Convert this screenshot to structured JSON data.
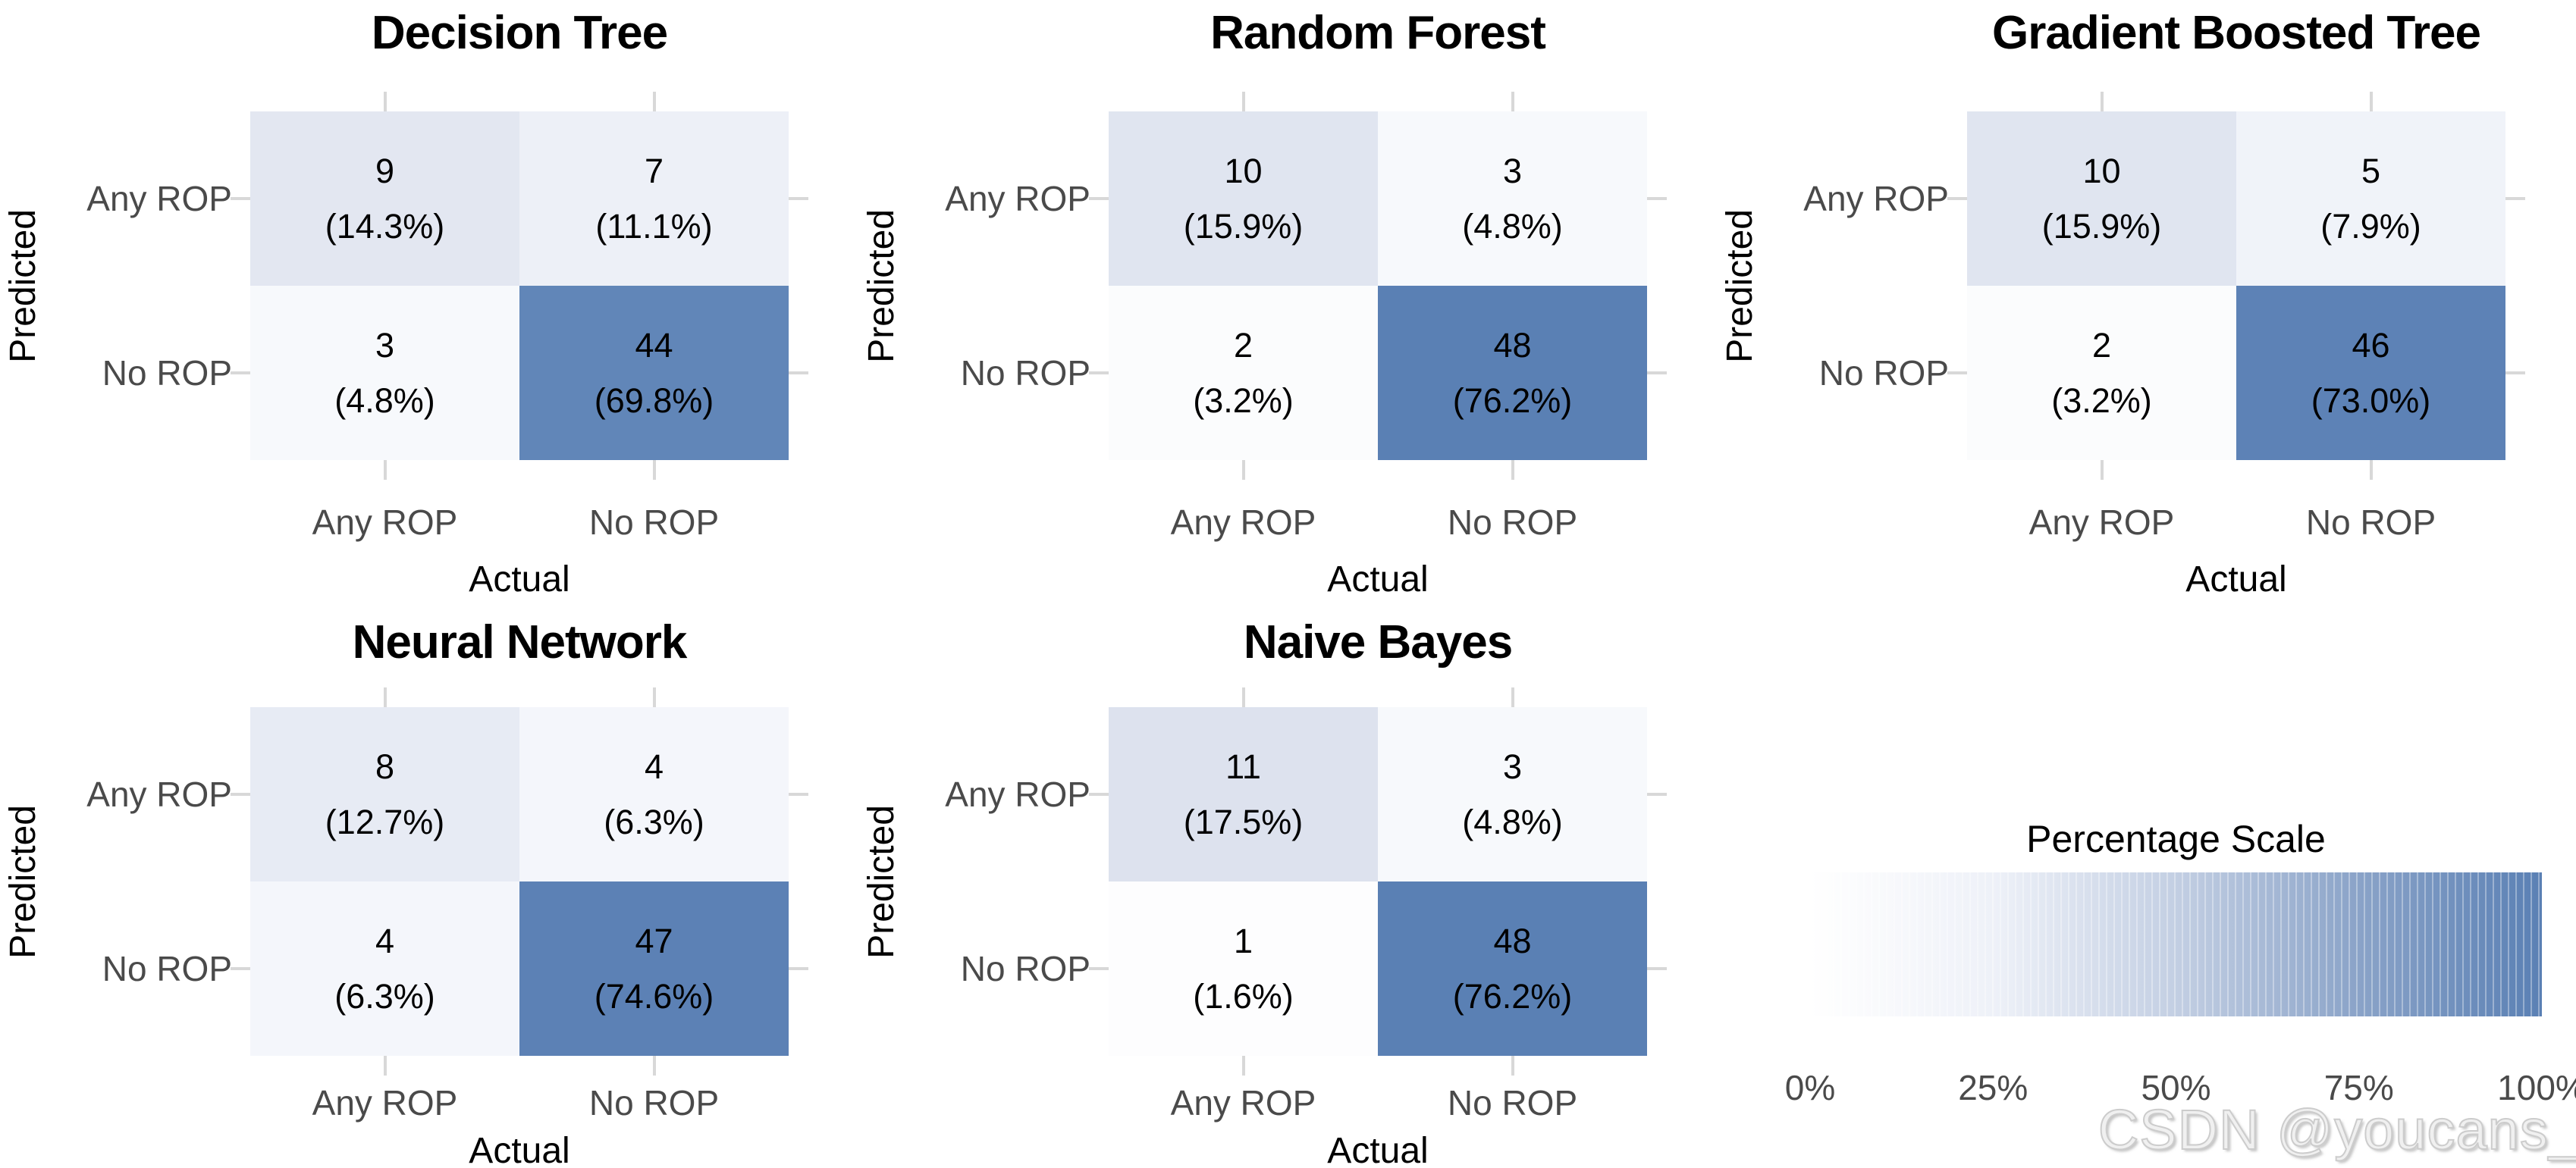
{
  "chart_data": [
    {
      "type": "heatmap",
      "title": "Decision Tree",
      "xlabel": "Actual",
      "ylabel": "Predicted",
      "x_categories": [
        "Any ROP",
        "No ROP"
      ],
      "y_categories": [
        "Any ROP",
        "No ROP"
      ],
      "counts": [
        [
          9,
          7
        ],
        [
          3,
          44
        ]
      ],
      "percentages": [
        [
          14.3,
          11.1
        ],
        [
          4.8,
          69.8
        ]
      ]
    },
    {
      "type": "heatmap",
      "title": "Random Forest",
      "xlabel": "Actual",
      "ylabel": "Predicted",
      "x_categories": [
        "Any ROP",
        "No ROP"
      ],
      "y_categories": [
        "Any ROP",
        "No ROP"
      ],
      "counts": [
        [
          10,
          3
        ],
        [
          2,
          48
        ]
      ],
      "percentages": [
        [
          15.9,
          4.8
        ],
        [
          3.2,
          76.2
        ]
      ]
    },
    {
      "type": "heatmap",
      "title": "Gradient Boosted Tree",
      "xlabel": "Actual",
      "ylabel": "Predicted",
      "x_categories": [
        "Any ROP",
        "No ROP"
      ],
      "y_categories": [
        "Any ROP",
        "No ROP"
      ],
      "counts": [
        [
          10,
          5
        ],
        [
          2,
          46
        ]
      ],
      "percentages": [
        [
          15.9,
          7.9
        ],
        [
          3.2,
          73.0
        ]
      ]
    },
    {
      "type": "heatmap",
      "title": "Neural Network",
      "xlabel": "Actual",
      "ylabel": "Predicted",
      "x_categories": [
        "Any ROP",
        "No ROP"
      ],
      "y_categories": [
        "Any ROP",
        "No ROP"
      ],
      "counts": [
        [
          8,
          4
        ],
        [
          4,
          47
        ]
      ],
      "percentages": [
        [
          12.7,
          6.3
        ],
        [
          6.3,
          74.6
        ]
      ]
    },
    {
      "type": "heatmap",
      "title": "Naive Bayes",
      "xlabel": "Actual",
      "ylabel": "Predicted",
      "x_categories": [
        "Any ROP",
        "No ROP"
      ],
      "y_categories": [
        "Any ROP",
        "No ROP"
      ],
      "counts": [
        [
          11,
          3
        ],
        [
          1,
          48
        ]
      ],
      "percentages": [
        [
          17.5,
          4.8
        ],
        [
          1.6,
          76.2
        ]
      ]
    }
  ],
  "axes": {
    "x_label": "Actual",
    "y_label": "Predicted",
    "col_labels": [
      "Any ROP",
      "No ROP"
    ],
    "row_labels": [
      "Any ROP",
      "No ROP"
    ]
  },
  "panels": [
    {
      "title": "Decision Tree",
      "cells": [
        {
          "count": "9",
          "pct": "(14.3%)",
          "color": "#e3e7f1"
        },
        {
          "count": "7",
          "pct": "(11.1%)",
          "color": "#edf0f7"
        },
        {
          "count": "3",
          "pct": "(4.8%)",
          "color": "#f7f9fc"
        },
        {
          "count": "44",
          "pct": "(69.8%)",
          "color": "#6186b8"
        }
      ]
    },
    {
      "title": "Random Forest",
      "cells": [
        {
          "count": "10",
          "pct": "(15.9%)",
          "color": "#e0e5f0"
        },
        {
          "count": "3",
          "pct": "(4.8%)",
          "color": "#f7f9fc"
        },
        {
          "count": "2",
          "pct": "(3.2%)",
          "color": "#fbfcfd"
        },
        {
          "count": "48",
          "pct": "(76.2%)",
          "color": "#5a80b4"
        }
      ]
    },
    {
      "title": "Gradient Boosted Tree",
      "cells": [
        {
          "count": "10",
          "pct": "(15.9%)",
          "color": "#e0e5f0"
        },
        {
          "count": "5",
          "pct": "(7.9%)",
          "color": "#f0f3f9"
        },
        {
          "count": "2",
          "pct": "(3.2%)",
          "color": "#fbfcfd"
        },
        {
          "count": "46",
          "pct": "(73.0%)",
          "color": "#5d82b6"
        }
      ]
    },
    {
      "title": "Neural Network",
      "cells": [
        {
          "count": "8",
          "pct": "(12.7%)",
          "color": "#e7ebf4"
        },
        {
          "count": "4",
          "pct": "(6.3%)",
          "color": "#f4f6fb"
        },
        {
          "count": "4",
          "pct": "(6.3%)",
          "color": "#f4f6fb"
        },
        {
          "count": "47",
          "pct": "(74.6%)",
          "color": "#5c81b5"
        }
      ]
    },
    {
      "title": "Naive Bayes",
      "cells": [
        {
          "count": "11",
          "pct": "(17.5%)",
          "color": "#dde2ee"
        },
        {
          "count": "3",
          "pct": "(4.8%)",
          "color": "#f7f9fc"
        },
        {
          "count": "1",
          "pct": "(1.6%)",
          "color": "#fdfdfe"
        },
        {
          "count": "48",
          "pct": "(76.2%)",
          "color": "#5a80b4"
        }
      ]
    }
  ],
  "legend": {
    "title": "Percentage Scale",
    "tick_labels": [
      "0%",
      "25%",
      "50%",
      "75%",
      "100%"
    ],
    "range": [
      0,
      100
    ],
    "gradient_low": "#ffffff",
    "gradient_high": "#5a80b4",
    "background_css": "linear-gradient(90deg, #ffffff 0%, #eef1f8 25%, #c3cfe3 50%, #8aa3c8 75%, #5a80b4 100%)"
  },
  "watermark": "CSDN @youcans_"
}
